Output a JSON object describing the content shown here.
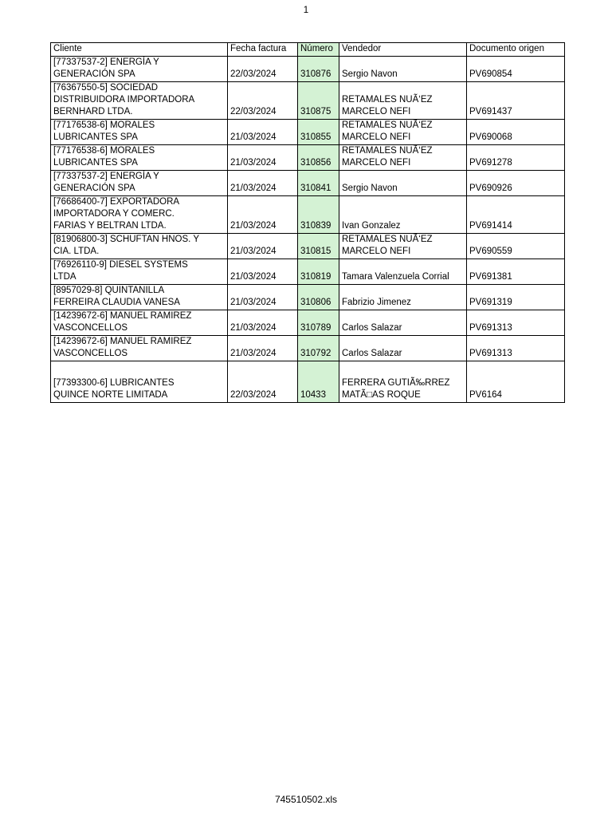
{
  "page": {
    "number": "1",
    "footer_filename": "745510502.xls"
  },
  "table": {
    "columns": [
      "Cliente",
      "Fecha factura",
      "Número",
      "Vendedor",
      "Documento origen"
    ],
    "highlight_color": "#d4f2d4",
    "rows": [
      {
        "cliente": "[77337537-2] ENERGÍA Y\nGENERACIÓN SPA",
        "fecha": "22/03/2024",
        "numero": "310876",
        "vendedor": "Sergio Navon",
        "documento": "PV690854"
      },
      {
        "cliente": "[76367550-5] SOCIEDAD\nDISTRIBUIDORA IMPORTADORA\nBERNHARD LTDA.",
        "fecha": "22/03/2024",
        "numero": "310875",
        "vendedor": "RETAMALES NUÃ‘EZ\nMARCELO NEFI",
        "documento": "PV691437"
      },
      {
        "cliente": "[77176538-6] MORALES\nLUBRICANTES SPA",
        "fecha": "21/03/2024",
        "numero": "310855",
        "vendedor": "RETAMALES NUÃ‘EZ\nMARCELO NEFI",
        "documento": "PV690068"
      },
      {
        "cliente": "[77176538-6] MORALES\nLUBRICANTES SPA",
        "fecha": "21/03/2024",
        "numero": "310856",
        "vendedor": "RETAMALES NUÃ‘EZ\nMARCELO NEFI",
        "documento": "PV691278"
      },
      {
        "cliente": "[77337537-2] ENERGÍA Y\nGENERACIÓN SPA",
        "fecha": "21/03/2024",
        "numero": "310841",
        "vendedor": "Sergio Navon",
        "documento": "PV690926"
      },
      {
        "cliente": "[76686400-7] EXPORTADORA\nIMPORTADORA Y COMERC.\nFARIAS Y BELTRAN LTDA.",
        "fecha": "21/03/2024",
        "numero": "310839",
        "vendedor": "Ivan Gonzalez",
        "documento": "PV691414"
      },
      {
        "cliente": "[81906800-3] SCHUFTAN HNOS. Y\nCIA. LTDA.",
        "fecha": "21/03/2024",
        "numero": "310815",
        "vendedor": "RETAMALES NUÃ‘EZ\nMARCELO NEFI",
        "documento": "PV690559"
      },
      {
        "cliente": "[76926110-9] DIESEL SYSTEMS\nLTDA",
        "fecha": "21/03/2024",
        "numero": "310819",
        "vendedor": "Tamara Valenzuela Corrial",
        "documento": "PV691381"
      },
      {
        "cliente": "[8957029-8] QUINTANILLA\nFERREIRA CLAUDIA VANESA",
        "fecha": "21/03/2024",
        "numero": "310806",
        "vendedor": "Fabrizio Jimenez",
        "documento": "PV691319"
      },
      {
        "cliente": "[14239672-6] MANUEL RAMIREZ\nVASCONCELLOS",
        "fecha": "21/03/2024",
        "numero": "310789",
        "vendedor": "Carlos Salazar",
        "documento": "PV691313"
      },
      {
        "cliente": "[14239672-6] MANUEL RAMIREZ\nVASCONCELLOS",
        "fecha": "21/03/2024",
        "numero": "310792",
        "vendedor": "Carlos Salazar",
        "documento": "PV691313"
      },
      {
        "cliente": "[77393300-6] LUBRICANTES\nQUINCE NORTE LIMITADA",
        "fecha": "22/03/2024",
        "numero": "10433",
        "vendedor": "FERRERA GUTIÃ‰RREZ\nMATÃ□AS ROQUE",
        "documento": "PV6164"
      }
    ]
  }
}
